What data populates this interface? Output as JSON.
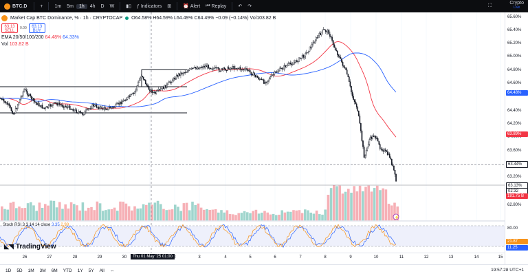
{
  "toolbar": {
    "symbol": "BTC.D",
    "intervals": [
      "1m",
      "5m",
      "1h",
      "4h",
      "D",
      "W"
    ],
    "active_interval": "1h",
    "indicators_label": "Indicators",
    "alert_label": "Alert",
    "replay_label": "Replay",
    "brand": "Crypto",
    "brand_sub": "Live"
  },
  "legend": {
    "title": "Market Cap BTC Dominance, % · 1h · CRYPTOCAP",
    "ohlc": "O64.58% H64.59% L64.49% C64.49% −0.09 (−0.14%) Vol103.82 B",
    "sell_price": "63.13",
    "sell_label": "SELL",
    "spread": "0.00",
    "buy_price": "63.13",
    "buy_label": "BUY",
    "ema_label": "EMA 20/50/100/200",
    "ema_val1": "64.48%",
    "ema_val2": "64.33%",
    "vol_label": "Vol",
    "vol_val": "103.82 B"
  },
  "price_axis": {
    "ticks": [
      "65.60%",
      "65.40%",
      "65.20%",
      "65.00%",
      "64.80%",
      "64.60%",
      "64.40%",
      "64.20%",
      "64.00%",
      "63.80%",
      "63.60%",
      "63.20%",
      "62.80%"
    ],
    "labels": [
      {
        "text": "64.48%",
        "color": "#2962ff"
      },
      {
        "text": "63.89%",
        "color": "#f23645"
      },
      {
        "text": "63.44%",
        "color": "#131722"
      },
      {
        "text": "63.13%",
        "color": "#131722"
      },
      {
        "text": "02:32",
        "color": "#131722"
      },
      {
        "text": "181.75 B",
        "color": "#f23645"
      }
    ],
    "stoch_ticks": [
      "80.00"
    ],
    "stoch_labels": [
      {
        "text": "21.87",
        "color": "#f7931a"
      },
      {
        "text": "11.25",
        "color": "#2962ff"
      }
    ]
  },
  "stoch": {
    "label": "Stoch RSI 3 3 14 14 close",
    "k": "3.35",
    "d": "2.98"
  },
  "brand_logo": "TradingView",
  "time_axis": {
    "ticks": [
      "26",
      "27",
      "28",
      "29",
      "30",
      "2",
      "3",
      "4",
      "5",
      "6",
      "7",
      "8",
      "9",
      "10",
      "11",
      "12",
      "13",
      "14",
      "15"
    ],
    "crosshair_date": "Thu 01 May '25   01:00"
  },
  "bottom": {
    "ranges": [
      "1D",
      "5D",
      "1M",
      "3M",
      "6M",
      "YTD",
      "1Y",
      "5Y",
      "All"
    ],
    "clock": "19:57:28 UTC+1"
  },
  "colors": {
    "up": "#089981",
    "down": "#f23645",
    "ema_short": "#f23645",
    "ema_long": "#2962ff",
    "stoch_k": "#2962ff",
    "stoch_d": "#f7931a"
  }
}
